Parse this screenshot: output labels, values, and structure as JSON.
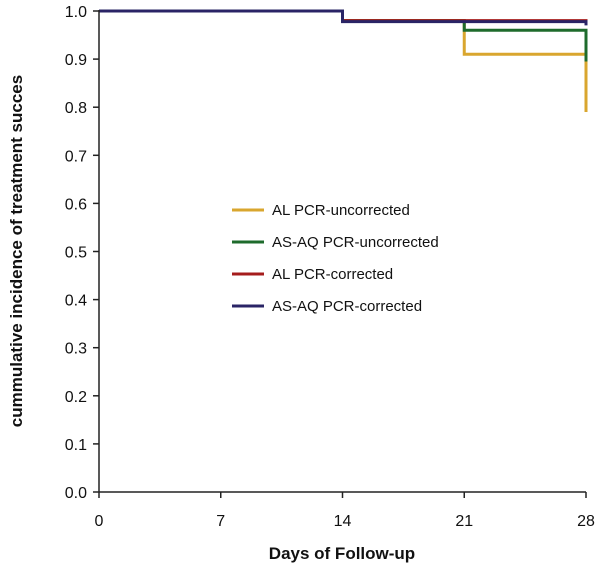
{
  "chart_data": {
    "type": "line",
    "step": true,
    "title": "",
    "xlabel": "Days of Follow-up",
    "ylabel": "cummulative incidence of treatment succes",
    "xlim": [
      0,
      28
    ],
    "ylim": [
      0,
      1
    ],
    "x_ticks": [
      0,
      7,
      14,
      21,
      28
    ],
    "x_tick_labels": [
      "0",
      "7",
      "14",
      "21",
      "28"
    ],
    "y_ticks": [
      0,
      0.1,
      0.2,
      0.3,
      0.4,
      0.5,
      0.6,
      0.7,
      0.8,
      0.9,
      1.0
    ],
    "y_tick_labels": [
      "0.0",
      "0.1",
      "0.2",
      "0.3",
      "0.4",
      "0.5",
      "0.6",
      "0.7",
      "0.8",
      "0.9",
      "1.0"
    ],
    "grid": false,
    "legend_position": "center",
    "series": [
      {
        "name": "AL PCR-uncorrected",
        "color": "#d9a62e",
        "x": [
          0,
          14,
          21,
          28,
          28
        ],
        "y": [
          1.0,
          0.98,
          0.91,
          0.91,
          0.79
        ]
      },
      {
        "name": "AS-AQ PCR-uncorrected",
        "color": "#1e6b2c",
        "x": [
          0,
          14,
          21,
          28,
          28
        ],
        "y": [
          1.0,
          0.98,
          0.96,
          0.96,
          0.895
        ]
      },
      {
        "name": "AL PCR-corrected",
        "color": "#a51c1c",
        "x": [
          0,
          14,
          28,
          28
        ],
        "y": [
          1.0,
          0.98,
          0.98,
          0.975
        ]
      },
      {
        "name": "AS-AQ PCR-corrected",
        "color": "#2a2466",
        "x": [
          0,
          14,
          28,
          28
        ],
        "y": [
          1.0,
          0.978,
          0.978,
          0.97
        ]
      }
    ]
  }
}
